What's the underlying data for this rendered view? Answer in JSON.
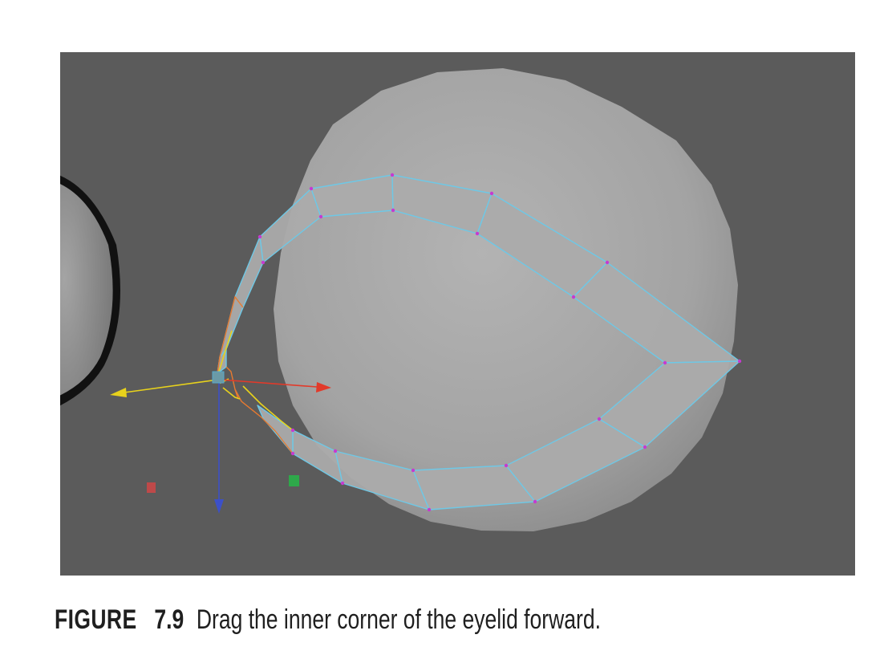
{
  "figure": {
    "label": "FIGURE",
    "number": "7.9",
    "caption": "Drag the inner corner of the eyelid forward."
  },
  "viewport": {
    "background_color": "#5b5b5b",
    "edge_color": "#6ec8e6",
    "vertex_color": "#c63ad0",
    "handles": {
      "x_axis_color": "#e23a2a",
      "y_axis_color": "#e8d21c",
      "z_axis_color": "#3c50c8",
      "plane_xy_color": "#d04646",
      "plane_yz_color": "#2ea84a"
    }
  }
}
